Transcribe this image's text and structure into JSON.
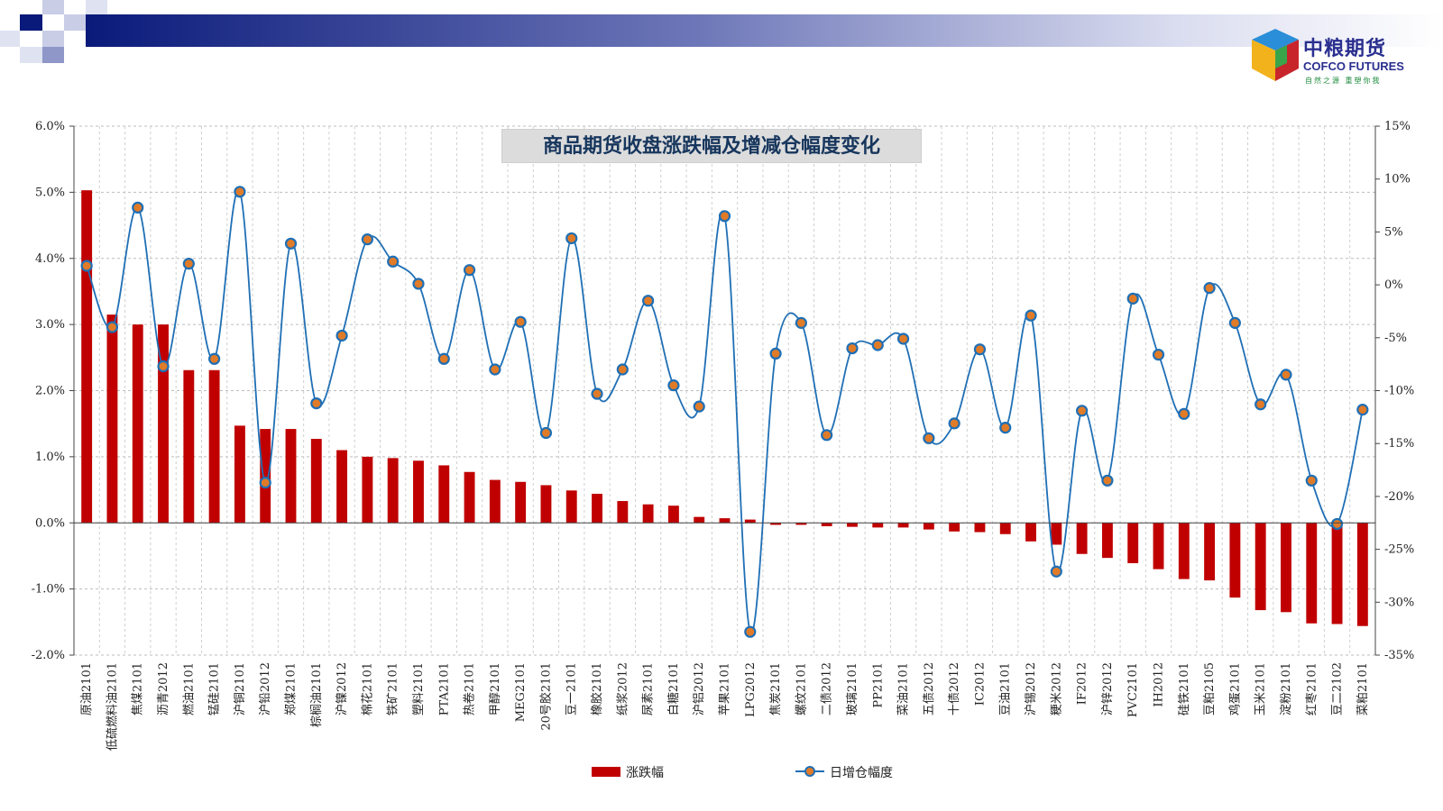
{
  "brand": {
    "name": "中粮期货",
    "english": "COFCO FUTURES",
    "slogan": "自然之源 重塑你我"
  },
  "chart_data": {
    "type": "bar",
    "title": "商品期货收盘涨跌幅及增减仓幅度变化",
    "categories": [
      "原油2101",
      "低硫燃料油2101",
      "焦煤2101",
      "沥青2012",
      "燃油2101",
      "锰硅2101",
      "沪铜2101",
      "沪铅2012",
      "郑煤2101",
      "棕榈油2101",
      "沪镍2012",
      "棉花2101",
      "铁矿2101",
      "塑料2101",
      "PTA2101",
      "热卷2101",
      "甲醇2101",
      "MEG2101",
      "20号胶2101",
      "豆一2101",
      "橡胶2101",
      "纸浆2012",
      "尿素2101",
      "白糖2101",
      "沪铝2012",
      "苹果2101",
      "LPG2012",
      "焦炭2101",
      "螺纹2101",
      "二债2012",
      "玻璃2101",
      "PP2101",
      "菜油2101",
      "五债2012",
      "十债2012",
      "IC2012",
      "豆油2101",
      "沪锡2012",
      "粳米2012",
      "IF2012",
      "沪锌2012",
      "PVC2101",
      "IH2012",
      "硅铁2101",
      "豆粕2105",
      "鸡蛋2101",
      "玉米2101",
      "淀粉2101",
      "红枣2101",
      "豆二2102",
      "菜粕2101"
    ],
    "series": [
      {
        "name": "涨跌幅",
        "type": "bar",
        "axis": "left",
        "color": "#c00000",
        "values": [
          5.03,
          3.15,
          3.0,
          3.0,
          2.31,
          2.31,
          1.47,
          1.42,
          1.42,
          1.27,
          1.1,
          1.0,
          0.98,
          0.94,
          0.87,
          0.77,
          0.65,
          0.62,
          0.57,
          0.49,
          0.44,
          0.33,
          0.28,
          0.26,
          0.09,
          0.07,
          0.05,
          -0.03,
          -0.03,
          -0.05,
          -0.06,
          -0.07,
          -0.07,
          -0.1,
          -0.13,
          -0.14,
          -0.17,
          -0.28,
          -0.33,
          -0.47,
          -0.53,
          -0.61,
          -0.7,
          -0.85,
          -0.87,
          -1.13,
          -1.32,
          -1.35,
          -1.52,
          -1.53,
          -1.56
        ]
      },
      {
        "name": "日增仓幅度",
        "type": "line",
        "axis": "right",
        "color": "#1f6fb5",
        "marker_color": "#e07b28",
        "values": [
          1.8,
          -4.0,
          7.3,
          -7.7,
          2.0,
          -7.0,
          8.8,
          -18.7,
          3.9,
          -11.2,
          -4.8,
          4.3,
          2.2,
          0.1,
          -7.0,
          1.4,
          -8.0,
          -3.5,
          -14.0,
          4.4,
          -10.3,
          -8.0,
          -1.5,
          -9.5,
          -11.5,
          6.5,
          -32.8,
          -6.5,
          -3.6,
          -14.2,
          -6.0,
          -5.7,
          -5.1,
          -14.5,
          -13.1,
          -6.1,
          -13.5,
          -2.9,
          -27.1,
          -11.9,
          -18.5,
          -1.3,
          -6.6,
          -12.2,
          -0.3,
          -3.6,
          -11.3,
          -8.5,
          -18.5,
          -22.6,
          -11.8
        ]
      }
    ],
    "y_left": {
      "min": -2.0,
      "max": 6.0,
      "ticks": [
        "-2.0%",
        "-1.0%",
        "0.0%",
        "1.0%",
        "2.0%",
        "3.0%",
        "4.0%",
        "5.0%",
        "6.0%"
      ]
    },
    "y_right": {
      "min": -35,
      "max": 15,
      "ticks": [
        "-35%",
        "-30%",
        "-25%",
        "-20%",
        "-15%",
        "-10%",
        "-5%",
        "0%",
        "5%",
        "10%",
        "15%"
      ]
    },
    "grid": true,
    "legend_position": "bottom",
    "legend": [
      "涨跌幅",
      "日增仓幅度"
    ]
  }
}
